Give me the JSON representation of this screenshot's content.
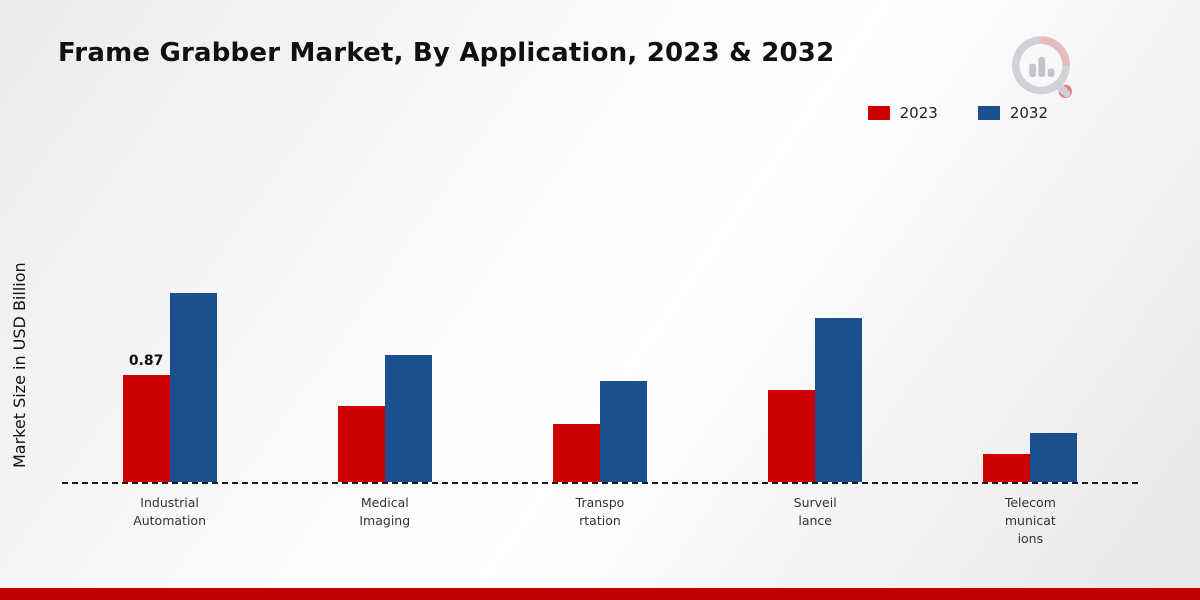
{
  "title": "Frame Grabber Market, By Application, 2023 & 2032",
  "ylabel": "Market Size in USD Billion",
  "chart_data": {
    "type": "bar",
    "title": "Frame Grabber Market, By Application, 2023 & 2032",
    "xlabel": "",
    "ylabel": "Market Size in USD Billion",
    "categories": [
      "Industrial\nAutomation",
      "Medical\nImaging",
      "Transpo\nrtation",
      "Surveil\nlance",
      "Telecom\nmunicat\nions"
    ],
    "series": [
      {
        "name": "2023",
        "color": "#cc0001",
        "values": [
          0.87,
          0.62,
          0.47,
          0.75,
          0.23
        ]
      },
      {
        "name": "2032",
        "color": "#1b4f8f",
        "values": [
          1.54,
          1.03,
          0.82,
          1.33,
          0.4
        ]
      }
    ],
    "annotations": [
      {
        "category_index": 0,
        "series_index": 0,
        "text": "0.87"
      }
    ],
    "ylim": [
      0,
      1.8
    ],
    "grid": false,
    "legend_position": "top-right",
    "baseline_style": "dashed"
  },
  "branding": {
    "logo_icon": "magnifier-bar-chart-icon",
    "bottom_bar_color": "#c00000",
    "logo_gray": "#c9ccd2",
    "logo_red": "#cc0001"
  }
}
